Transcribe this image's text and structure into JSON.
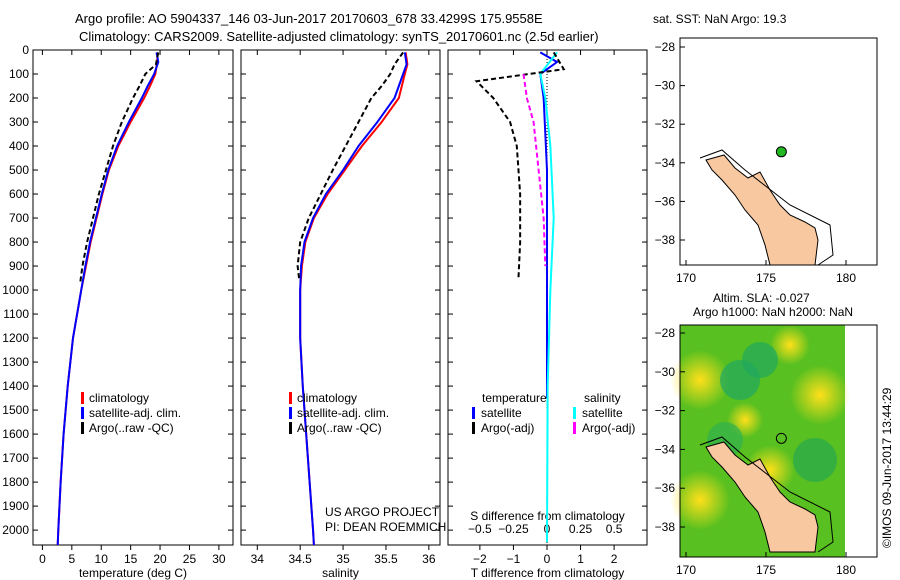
{
  "title_line1": "Argo profile: AO 5904337_146 03-Jun-2017 20170603_678 33.4299S 175.9558E",
  "title_line2": "Climatology: CARS2009. Satellite-adjusted climatology: synTS_20170601.nc (2.5d earlier)",
  "project_line1": "US ARGO PROJECT",
  "project_line2": "PI: DEAN ROEMMICH",
  "watermark": "©IMOS 09-Jun-2017 13:44:29",
  "colors": {
    "climatology": "#ff0000",
    "satellite": "#0000ff",
    "argo": "#000000",
    "sal_satellite": "#00ffff",
    "sal_argo": "#ff00ff",
    "land": "#f8c8a0"
  },
  "chart_data": [
    {
      "type": "line",
      "id": "temp",
      "xlabel": "temperature (deg C)",
      "ylabel": "",
      "xlim": [
        -1.6,
        32.4
      ],
      "ylim": [
        2062,
        0
      ],
      "xticks": [
        0,
        5,
        10,
        15,
        20,
        25,
        30
      ],
      "yticks": [
        0,
        100,
        200,
        300,
        400,
        500,
        600,
        700,
        800,
        900,
        1000,
        1100,
        1200,
        1300,
        1400,
        1500,
        1600,
        1700,
        1800,
        1900,
        2000
      ],
      "legend": [
        "climatology",
        "satellite-adj. clim.",
        "Argo(..raw -QC)"
      ],
      "series": [
        {
          "name": "climatology",
          "color": "#ff0000",
          "dash": false,
          "points": [
            [
              19.6,
              10
            ],
            [
              19.5,
              50
            ],
            [
              19.2,
              100
            ],
            [
              18.3,
              150
            ],
            [
              17.3,
              200
            ],
            [
              15,
              300
            ],
            [
              12.9,
              400
            ],
            [
              11.3,
              500
            ],
            [
              10.2,
              600
            ],
            [
              9.2,
              700
            ],
            [
              8.2,
              800
            ],
            [
              7.4,
              900
            ],
            [
              6.6,
              1000
            ],
            [
              5.2,
              1200
            ],
            [
              4.3,
              1400
            ],
            [
              3.6,
              1600
            ],
            [
              3.1,
              1800
            ],
            [
              2.7,
              2000
            ],
            [
              2.6,
              2062
            ]
          ]
        },
        {
          "name": "satellite-adj. clim.",
          "color": "#0000ff",
          "dash": false,
          "points": [
            [
              19.4,
              10
            ],
            [
              19.7,
              50
            ],
            [
              19,
              100
            ],
            [
              17.9,
              150
            ],
            [
              16.9,
              200
            ],
            [
              14.7,
              300
            ],
            [
              12.7,
              400
            ],
            [
              11.2,
              500
            ],
            [
              10.1,
              600
            ],
            [
              9.1,
              700
            ],
            [
              8.1,
              800
            ],
            [
              7.3,
              900
            ],
            [
              6.6,
              1000
            ],
            [
              5.2,
              1200
            ],
            [
              4.3,
              1400
            ],
            [
              3.6,
              1600
            ],
            [
              3.1,
              1800
            ],
            [
              2.7,
              2000
            ],
            [
              2.6,
              2062
            ]
          ]
        },
        {
          "name": "Argo(..raw -QC)",
          "color": "#000000",
          "dash": true,
          "points": [
            [
              19.7,
              10
            ],
            [
              19.3,
              60
            ],
            [
              17.5,
              100
            ],
            [
              16.5,
              150
            ],
            [
              15.4,
              200
            ],
            [
              13.5,
              300
            ],
            [
              12,
              400
            ],
            [
              10.8,
              500
            ],
            [
              9.6,
              600
            ],
            [
              8.6,
              700
            ],
            [
              7.6,
              800
            ],
            [
              6.8,
              900
            ],
            [
              6.4,
              975
            ]
          ]
        }
      ]
    },
    {
      "type": "line",
      "id": "sal",
      "xlabel": "salinity",
      "ylabel": "",
      "xlim": [
        33.81,
        36.13
      ],
      "ylim": [
        2062,
        0
      ],
      "xticks": [
        34,
        34.5,
        35,
        35.5,
        36
      ],
      "legend": [
        "climatology",
        "satellite-adj. clim.",
        "Argo(..raw -QC)"
      ],
      "series": [
        {
          "name": "climatology",
          "color": "#ff0000",
          "dash": false,
          "points": [
            [
              35.73,
              10
            ],
            [
              35.75,
              60
            ],
            [
              35.72,
              100
            ],
            [
              35.65,
              200
            ],
            [
              35.45,
              300
            ],
            [
              35.22,
              400
            ],
            [
              35.02,
              500
            ],
            [
              34.82,
              600
            ],
            [
              34.66,
              700
            ],
            [
              34.56,
              800
            ],
            [
              34.52,
              900
            ],
            [
              34.5,
              1000
            ],
            [
              34.5,
              1200
            ],
            [
              34.53,
              1400
            ],
            [
              34.57,
              1600
            ],
            [
              34.61,
              1800
            ],
            [
              34.65,
              2000
            ],
            [
              34.66,
              2062
            ]
          ]
        },
        {
          "name": "satellite-adj. clim.",
          "color": "#0000ff",
          "dash": false,
          "points": [
            [
              35.72,
              10
            ],
            [
              35.74,
              60
            ],
            [
              35.7,
              100
            ],
            [
              35.6,
              200
            ],
            [
              35.4,
              300
            ],
            [
              35.18,
              400
            ],
            [
              35,
              500
            ],
            [
              34.8,
              600
            ],
            [
              34.65,
              700
            ],
            [
              34.55,
              800
            ],
            [
              34.51,
              900
            ],
            [
              34.5,
              1000
            ],
            [
              34.5,
              1200
            ],
            [
              34.53,
              1400
            ],
            [
              34.57,
              1600
            ],
            [
              34.61,
              1800
            ],
            [
              34.65,
              2000
            ],
            [
              34.66,
              2062
            ]
          ]
        },
        {
          "name": "Argo(..raw -QC)",
          "color": "#000000",
          "dash": true,
          "points": [
            [
              35.7,
              10
            ],
            [
              35.6,
              60
            ],
            [
              35.55,
              100
            ],
            [
              35.45,
              150
            ],
            [
              35.33,
              200
            ],
            [
              35.18,
              300
            ],
            [
              35.03,
              400
            ],
            [
              34.88,
              500
            ],
            [
              34.74,
              600
            ],
            [
              34.6,
              700
            ],
            [
              34.5,
              800
            ],
            [
              34.47,
              900
            ],
            [
              34.49,
              960
            ]
          ]
        }
      ]
    },
    {
      "type": "line",
      "id": "diff",
      "xlabel": "T difference from climatology",
      "x2label": "S difference from climatology",
      "xlim": [
        -2.95,
        2.98
      ],
      "ylim": [
        2062,
        0
      ],
      "xticks": [
        -2,
        -1,
        0,
        1,
        2
      ],
      "x2ticks": [
        -0.5,
        -0.25,
        0,
        0.25,
        0.5
      ],
      "x2_scale": 0.25,
      "legend_headers": [
        "temperature",
        "salinity"
      ],
      "legend": [
        "satellite",
        "Argo(-adj)",
        "satellite",
        "Argo(-adj)"
      ],
      "series": [
        {
          "name": "T satellite",
          "color": "#0000ff",
          "dash": false,
          "points": [
            [
              -0.2,
              10
            ],
            [
              0.3,
              50
            ],
            [
              -0.2,
              100
            ],
            [
              -0.1,
              200
            ],
            [
              0,
              500
            ],
            [
              0,
              1000
            ],
            [
              0,
              1450
            ]
          ]
        },
        {
          "name": "S satellite",
          "color": "#00ffff",
          "dash": false,
          "points": [
            [
              0.3,
              10
            ],
            [
              -0.2,
              100
            ],
            [
              -0.05,
              200
            ],
            [
              0.1,
              400
            ],
            [
              0.2,
              700
            ],
            [
              0.1,
              1000
            ],
            [
              0.02,
              1400
            ],
            [
              0,
              2050
            ]
          ]
        },
        {
          "name": "T Argo(-adj)",
          "color": "#000000",
          "dash": true,
          "points": [
            [
              0.2,
              10
            ],
            [
              0.5,
              80
            ],
            [
              -2.1,
              130
            ],
            [
              -1.6,
              200
            ],
            [
              -1.1,
              300
            ],
            [
              -0.9,
              400
            ],
            [
              -0.8,
              600
            ],
            [
              -0.8,
              800
            ],
            [
              -0.85,
              950
            ]
          ]
        },
        {
          "name": "S Argo(-adj)",
          "color": "#ff00ff",
          "dash": true,
          "points": [
            [
              -0.7,
              100
            ],
            [
              -0.6,
              200
            ],
            [
              -0.4,
              300
            ],
            [
              -0.25,
              500
            ],
            [
              -0.1,
              700
            ],
            [
              -0.05,
              900
            ]
          ]
        }
      ]
    },
    {
      "type": "map",
      "id": "sst",
      "title": "sat. SST: NaN Argo: 19.3",
      "lon_ticks": [
        170,
        175,
        180
      ],
      "lat_ticks": [
        -28,
        -30,
        -32,
        -34,
        -36,
        -38
      ],
      "float": [
        175.96,
        -33.43
      ]
    },
    {
      "type": "map",
      "id": "sla",
      "title_line1": "Altim. SLA: -0.027",
      "title_line2": "Argo h1000: NaN h2000: NaN",
      "lon_ticks": [
        170,
        175,
        180
      ],
      "lat_ticks": [
        -28,
        -30,
        -32,
        -34,
        -36,
        -38
      ],
      "float": [
        175.96,
        -33.43
      ]
    }
  ]
}
